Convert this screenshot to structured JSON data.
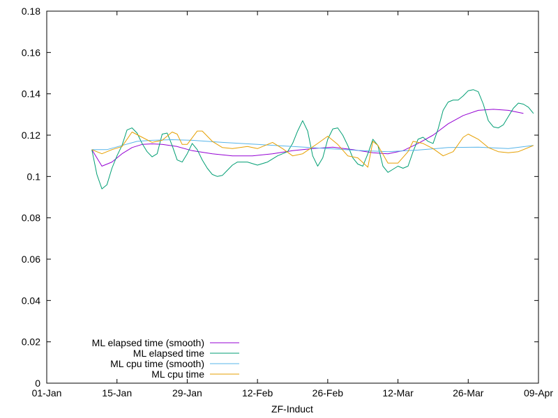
{
  "chart_data": {
    "type": "line",
    "title": "",
    "xlabel": "ZF-Induct",
    "ylabel": "",
    "x_range": [
      "2015-01-01",
      "2015-04-09"
    ],
    "ylim": [
      0,
      0.18
    ],
    "y_ticks": [
      0,
      0.02,
      0.04,
      0.06,
      0.08,
      0.1,
      0.12,
      0.14,
      0.16,
      0.18
    ],
    "y_tick_labels": [
      "0",
      "0.02",
      "0.04",
      "0.06",
      "0.08",
      "0.1",
      "0.12",
      "0.14",
      "0.16",
      "0.18"
    ],
    "x_ticks": [
      "2015-01-01",
      "2015-01-15",
      "2015-01-29",
      "2015-02-12",
      "2015-02-26",
      "2015-03-12",
      "2015-03-26",
      "2015-04-09"
    ],
    "x_tick_labels": [
      "01-Jan",
      "15-Jan",
      "29-Jan",
      "12-Feb",
      "26-Feb",
      "12-Mar",
      "26-Mar",
      "09-Apr"
    ],
    "grid": false,
    "legend_position": "bottom-left",
    "series": [
      {
        "name": "ML elapsed time (smooth)",
        "color": "#9400d3",
        "points": [
          [
            "2015-01-10",
            0.113
          ],
          [
            "2015-01-12",
            0.105
          ],
          [
            "2015-01-14",
            0.107
          ],
          [
            "2015-01-16",
            0.111
          ],
          [
            "2015-01-18",
            0.114
          ],
          [
            "2015-01-20",
            0.1155
          ],
          [
            "2015-01-22",
            0.1158
          ],
          [
            "2015-01-24",
            0.1155
          ],
          [
            "2015-01-27",
            0.1145
          ],
          [
            "2015-01-30",
            0.1125
          ],
          [
            "2015-02-03",
            0.111
          ],
          [
            "2015-02-07",
            0.11
          ],
          [
            "2015-02-11",
            0.11
          ],
          [
            "2015-02-15",
            0.111
          ],
          [
            "2015-02-19",
            0.1125
          ],
          [
            "2015-02-23",
            0.1135
          ],
          [
            "2015-02-27",
            0.1142
          ],
          [
            "2015-03-03",
            0.113
          ],
          [
            "2015-03-07",
            0.1115
          ],
          [
            "2015-03-10",
            0.111
          ],
          [
            "2015-03-13",
            0.1125
          ],
          [
            "2015-03-16",
            0.116
          ],
          [
            "2015-03-19",
            0.12
          ],
          [
            "2015-03-22",
            0.1255
          ],
          [
            "2015-03-25",
            0.1295
          ],
          [
            "2015-03-28",
            0.132
          ],
          [
            "2015-03-31",
            0.1325
          ],
          [
            "2015-04-03",
            0.132
          ],
          [
            "2015-04-06",
            0.1305
          ]
        ]
      },
      {
        "name": "ML elapsed time",
        "color": "#009e73",
        "points": [
          [
            "2015-01-10",
            0.113
          ],
          [
            "2015-01-11",
            0.101
          ],
          [
            "2015-01-12",
            0.094
          ],
          [
            "2015-01-13",
            0.096
          ],
          [
            "2015-01-14",
            0.104
          ],
          [
            "2015-01-15",
            0.11
          ],
          [
            "2015-01-16",
            0.115
          ],
          [
            "2015-01-17",
            0.1225
          ],
          [
            "2015-01-18",
            0.1235
          ],
          [
            "2015-01-19",
            0.121
          ],
          [
            "2015-01-20",
            0.116
          ],
          [
            "2015-01-21",
            0.112
          ],
          [
            "2015-01-22",
            0.1095
          ],
          [
            "2015-01-23",
            0.111
          ],
          [
            "2015-01-24",
            0.1205
          ],
          [
            "2015-01-25",
            0.121
          ],
          [
            "2015-01-26",
            0.115
          ],
          [
            "2015-01-27",
            0.108
          ],
          [
            "2015-01-28",
            0.107
          ],
          [
            "2015-01-29",
            0.111
          ],
          [
            "2015-01-30",
            0.116
          ],
          [
            "2015-01-31",
            0.113
          ],
          [
            "2015-02-01",
            0.108
          ],
          [
            "2015-02-02",
            0.104
          ],
          [
            "2015-02-03",
            0.101
          ],
          [
            "2015-02-04",
            0.1
          ],
          [
            "2015-02-05",
            0.1005
          ],
          [
            "2015-02-06",
            0.103
          ],
          [
            "2015-02-07",
            0.1055
          ],
          [
            "2015-02-08",
            0.107
          ],
          [
            "2015-02-10",
            0.107
          ],
          [
            "2015-02-12",
            0.1055
          ],
          [
            "2015-02-14",
            0.107
          ],
          [
            "2015-02-16",
            0.11
          ],
          [
            "2015-02-18",
            0.112
          ],
          [
            "2015-02-19",
            0.116
          ],
          [
            "2015-02-20",
            0.122
          ],
          [
            "2015-02-21",
            0.127
          ],
          [
            "2015-02-22",
            0.122
          ],
          [
            "2015-02-23",
            0.11
          ],
          [
            "2015-02-24",
            0.105
          ],
          [
            "2015-02-25",
            0.109
          ],
          [
            "2015-02-26",
            0.118
          ],
          [
            "2015-02-27",
            0.123
          ],
          [
            "2015-02-28",
            0.1235
          ],
          [
            "2015-03-01",
            0.12
          ],
          [
            "2015-03-02",
            0.115
          ],
          [
            "2015-03-03",
            0.109
          ],
          [
            "2015-03-04",
            0.106
          ],
          [
            "2015-03-05",
            0.105
          ],
          [
            "2015-03-06",
            0.111
          ],
          [
            "2015-03-07",
            0.118
          ],
          [
            "2015-03-08",
            0.115
          ],
          [
            "2015-03-09",
            0.105
          ],
          [
            "2015-03-10",
            0.102
          ],
          [
            "2015-03-11",
            0.1035
          ],
          [
            "2015-03-12",
            0.105
          ],
          [
            "2015-03-13",
            0.104
          ],
          [
            "2015-03-14",
            0.105
          ],
          [
            "2015-03-15",
            0.112
          ],
          [
            "2015-03-16",
            0.118
          ],
          [
            "2015-03-17",
            0.119
          ],
          [
            "2015-03-18",
            0.117
          ],
          [
            "2015-03-19",
            0.116
          ],
          [
            "2015-03-20",
            0.123
          ],
          [
            "2015-03-21",
            0.132
          ],
          [
            "2015-03-22",
            0.136
          ],
          [
            "2015-03-23",
            0.137
          ],
          [
            "2015-03-24",
            0.137
          ],
          [
            "2015-03-25",
            0.139
          ],
          [
            "2015-03-26",
            0.1415
          ],
          [
            "2015-03-27",
            0.142
          ],
          [
            "2015-03-28",
            0.141
          ],
          [
            "2015-03-29",
            0.135
          ],
          [
            "2015-03-30",
            0.127
          ],
          [
            "2015-03-31",
            0.124
          ],
          [
            "2015-04-01",
            0.1235
          ],
          [
            "2015-04-02",
            0.125
          ],
          [
            "2015-04-03",
            0.129
          ],
          [
            "2015-04-04",
            0.133
          ],
          [
            "2015-04-05",
            0.1355
          ],
          [
            "2015-04-06",
            0.135
          ],
          [
            "2015-04-07",
            0.1335
          ],
          [
            "2015-04-08",
            0.1305
          ]
        ]
      },
      {
        "name": "ML cpu time (smooth)",
        "color": "#56b4e9",
        "points": [
          [
            "2015-01-10",
            0.113
          ],
          [
            "2015-01-13",
            0.113
          ],
          [
            "2015-01-16",
            0.115
          ],
          [
            "2015-01-19",
            0.117
          ],
          [
            "2015-01-22",
            0.1175
          ],
          [
            "2015-01-26",
            0.1178
          ],
          [
            "2015-01-30",
            0.1175
          ],
          [
            "2015-02-05",
            0.1165
          ],
          [
            "2015-02-12",
            0.1155
          ],
          [
            "2015-02-19",
            0.1145
          ],
          [
            "2015-02-26",
            0.1135
          ],
          [
            "2015-03-05",
            0.1125
          ],
          [
            "2015-03-10",
            0.112
          ],
          [
            "2015-03-16",
            0.1128
          ],
          [
            "2015-03-22",
            0.114
          ],
          [
            "2015-03-28",
            0.1142
          ],
          [
            "2015-04-03",
            0.1135
          ],
          [
            "2015-04-08",
            0.115
          ]
        ]
      },
      {
        "name": "ML cpu time",
        "color": "#e69f00",
        "points": [
          [
            "2015-01-10",
            0.113
          ],
          [
            "2015-01-12",
            0.111
          ],
          [
            "2015-01-14",
            0.113
          ],
          [
            "2015-01-16",
            0.1145
          ],
          [
            "2015-01-18",
            0.1215
          ],
          [
            "2015-01-20",
            0.119
          ],
          [
            "2015-01-22",
            0.1165
          ],
          [
            "2015-01-24",
            0.1175
          ],
          [
            "2015-01-26",
            0.1215
          ],
          [
            "2015-01-27",
            0.1205
          ],
          [
            "2015-01-28",
            0.1155
          ],
          [
            "2015-01-29",
            0.1155
          ],
          [
            "2015-01-31",
            0.122
          ],
          [
            "2015-02-01",
            0.122
          ],
          [
            "2015-02-03",
            0.117
          ],
          [
            "2015-02-05",
            0.114
          ],
          [
            "2015-02-07",
            0.1135
          ],
          [
            "2015-02-10",
            0.1145
          ],
          [
            "2015-02-12",
            0.1135
          ],
          [
            "2015-02-15",
            0.1165
          ],
          [
            "2015-02-17",
            0.1135
          ],
          [
            "2015-02-19",
            0.11
          ],
          [
            "2015-02-21",
            0.111
          ],
          [
            "2015-02-24",
            0.116
          ],
          [
            "2015-02-26",
            0.1195
          ],
          [
            "2015-02-28",
            0.1155
          ],
          [
            "2015-03-02",
            0.11
          ],
          [
            "2015-03-04",
            0.109
          ],
          [
            "2015-03-06",
            0.1045
          ],
          [
            "2015-03-07",
            0.117
          ],
          [
            "2015-03-08",
            0.115
          ],
          [
            "2015-03-10",
            0.1065
          ],
          [
            "2015-03-12",
            0.1065
          ],
          [
            "2015-03-14",
            0.112
          ],
          [
            "2015-03-15",
            0.117
          ],
          [
            "2015-03-17",
            0.116
          ],
          [
            "2015-03-19",
            0.1135
          ],
          [
            "2015-03-21",
            0.11
          ],
          [
            "2015-03-23",
            0.112
          ],
          [
            "2015-03-25",
            0.119
          ],
          [
            "2015-03-26",
            0.1205
          ],
          [
            "2015-03-28",
            0.118
          ],
          [
            "2015-03-30",
            0.114
          ],
          [
            "2015-04-01",
            0.112
          ],
          [
            "2015-04-03",
            0.1115
          ],
          [
            "2015-04-05",
            0.112
          ],
          [
            "2015-04-08",
            0.115
          ]
        ]
      }
    ]
  }
}
